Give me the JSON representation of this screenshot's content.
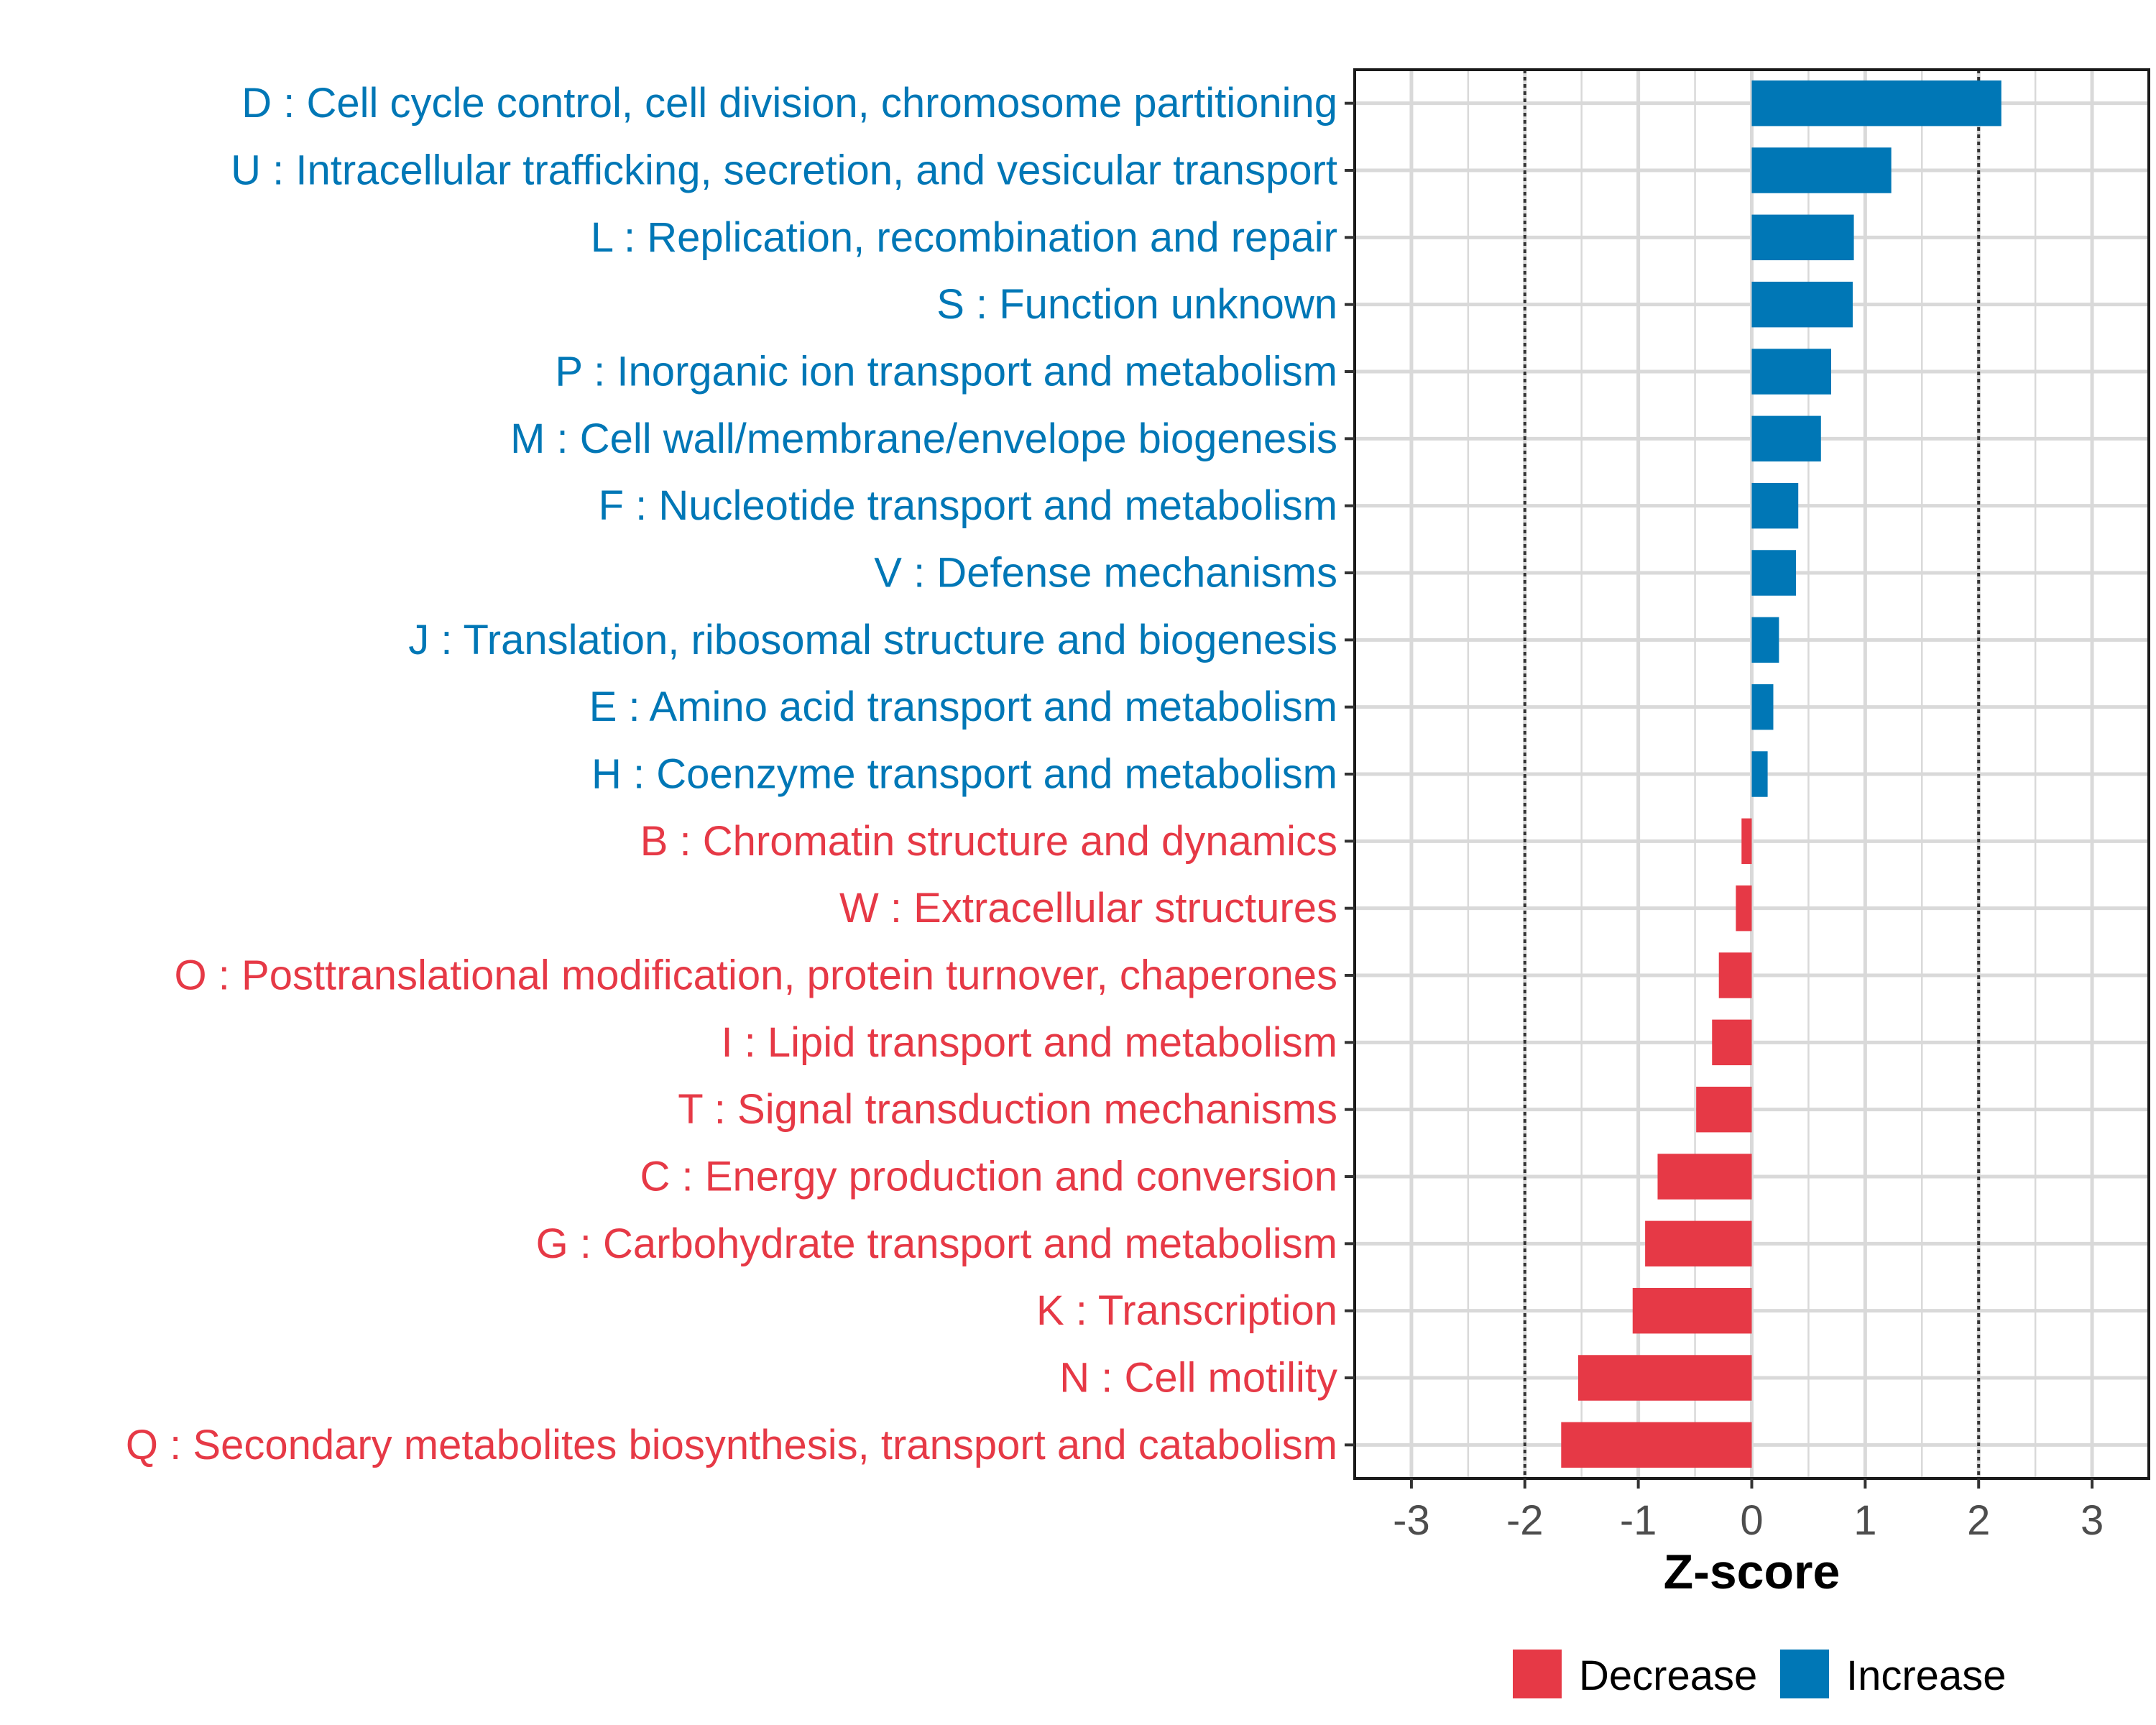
{
  "chart_data": {
    "type": "bar",
    "orientation": "horizontal",
    "title": "",
    "xlabel": "Z-score",
    "ylabel": "",
    "xlim": [
      -3.5,
      3.5
    ],
    "x_ticks": [
      -3,
      -2,
      -1,
      0,
      1,
      2,
      3
    ],
    "x_tick_labels": [
      "-3",
      "-2",
      "-1",
      "0",
      "1",
      "2",
      "3"
    ],
    "reference_lines": [
      -2,
      2
    ],
    "grid": true,
    "categories": [
      "D : Cell cycle control, cell division, chromosome partitioning",
      "U : Intracellular trafficking, secretion, and vesicular transport",
      "L : Replication, recombination and repair",
      "S : Function unknown",
      "P : Inorganic ion transport and metabolism",
      "M : Cell wall/membrane/envelope biogenesis",
      "F : Nucleotide transport and metabolism",
      "V : Defense mechanisms",
      "J : Translation, ribosomal structure and biogenesis",
      "E : Amino acid transport and metabolism",
      "H : Coenzyme transport and metabolism",
      "B : Chromatin structure and dynamics",
      "W : Extracellular structures",
      "O : Posttranslational modification, protein turnover, chaperones",
      "I : Lipid transport and metabolism",
      "T : Signal transduction mechanisms",
      "C : Energy production and conversion",
      "G : Carbohydrate transport and metabolism",
      "K : Transcription",
      "N : Cell motility",
      "Q : Secondary metabolites biosynthesis, transport and catabolism"
    ],
    "values": [
      2.2,
      1.23,
      0.9,
      0.89,
      0.7,
      0.61,
      0.41,
      0.39,
      0.24,
      0.19,
      0.14,
      -0.09,
      -0.14,
      -0.29,
      -0.35,
      -0.49,
      -0.83,
      -0.94,
      -1.05,
      -1.53,
      -1.68
    ],
    "groups": [
      "Increase",
      "Increase",
      "Increase",
      "Increase",
      "Increase",
      "Increase",
      "Increase",
      "Increase",
      "Increase",
      "Increase",
      "Increase",
      "Decrease",
      "Decrease",
      "Decrease",
      "Decrease",
      "Decrease",
      "Decrease",
      "Decrease",
      "Decrease",
      "Decrease",
      "Decrease"
    ],
    "legend": {
      "position": "bottom",
      "entries": [
        {
          "name": "Decrease",
          "color": "#E63946"
        },
        {
          "name": "Increase",
          "color": "#0077B6"
        }
      ]
    }
  },
  "colors": {
    "Decrease": "#E63946",
    "Increase": "#0077B6",
    "grid": "#d9d9d9",
    "panel_border": "#1a1a1a",
    "reference_line": "#333333"
  }
}
